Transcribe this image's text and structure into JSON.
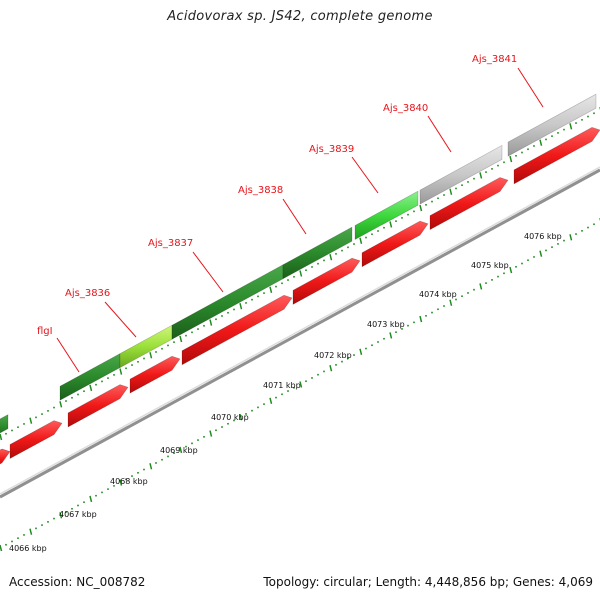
{
  "title": "Acidovorax sp. JS42, complete genome",
  "footer": {
    "accession": "Accession: NC_008782",
    "topology": "Topology: circular; Length: 4,448,856 bp; Genes: 4,069"
  },
  "colors": {
    "gene_red": "#f01818",
    "dark_green": "#2b8a2b",
    "yellow_green": "#9be03a",
    "light_green": "#3fd83f",
    "gray": "#c8c8c8",
    "label_red": "#e8141b",
    "dot_green": "#1f8a1f"
  },
  "gene_labels": [
    {
      "name": "flgI"
    },
    {
      "name": "Ajs_3836"
    },
    {
      "name": "Ajs_3837"
    },
    {
      "name": "Ajs_3838"
    },
    {
      "name": "Ajs_3839"
    },
    {
      "name": "Ajs_3840"
    },
    {
      "name": "Ajs_3841"
    }
  ],
  "scale_labels": [
    "4066 kbp",
    "4067 kbp",
    "4068 kbp",
    "4069 kbp",
    "4070 kbp",
    "4071 kbp",
    "4072 kbp",
    "4073 kbp",
    "4074 kbp",
    "4075 kbp",
    "4076 kbp"
  ]
}
